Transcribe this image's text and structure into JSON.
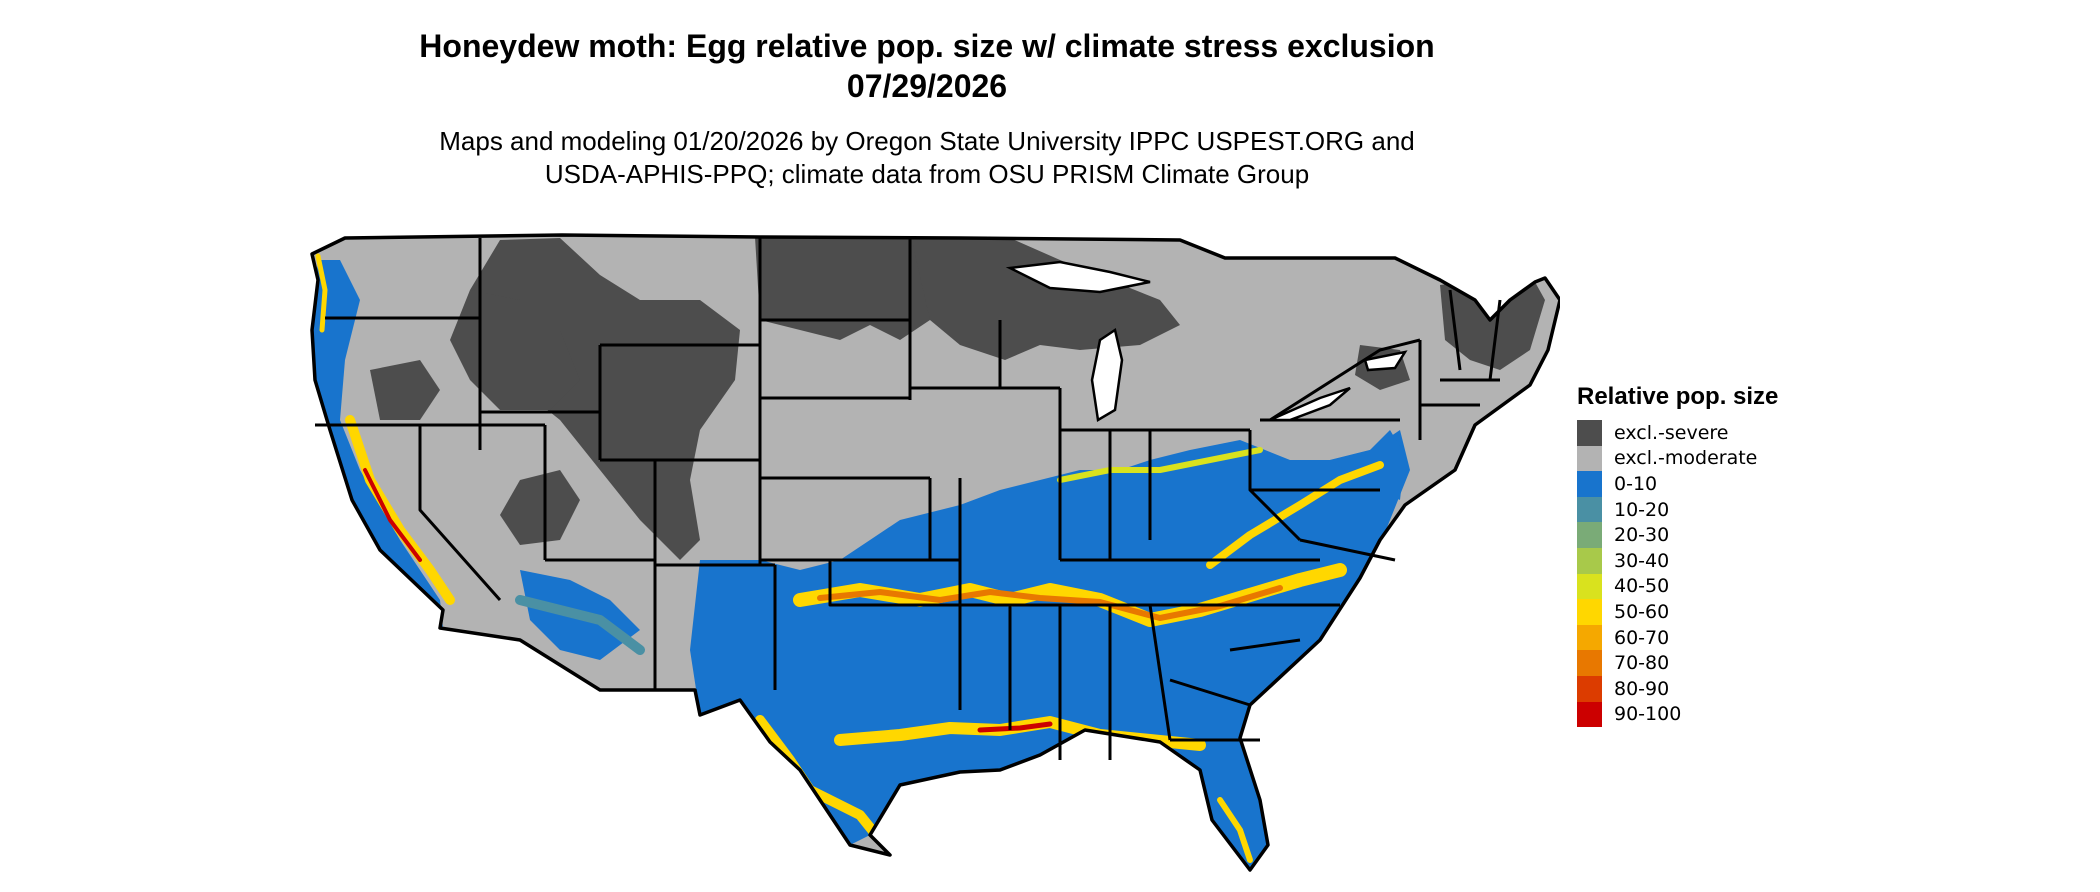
{
  "header": {
    "title_line1": "Honeydew moth: Egg relative pop. size w/ climate stress exclusion",
    "title_line2": "07/29/2026",
    "subtitle_line1": "Maps and modeling 01/20/2026 by Oregon State University IPPC USPEST.ORG and",
    "subtitle_line2": "USDA-APHIS-PPQ; climate data from OSU PRISM Climate Group"
  },
  "legend": {
    "title": "Relative pop. size",
    "items": [
      {
        "label": "excl.-severe",
        "color": "#4d4d4d"
      },
      {
        "label": "excl.-moderate",
        "color": "#b3b3b3"
      },
      {
        "label": "0-10",
        "color": "#1874cd"
      },
      {
        "label": "10-20",
        "color": "#4a90a4"
      },
      {
        "label": "20-30",
        "color": "#7aab77"
      },
      {
        "label": "30-40",
        "color": "#a8c94a"
      },
      {
        "label": "40-50",
        "color": "#d9e21e"
      },
      {
        "label": "50-60",
        "color": "#ffd700"
      },
      {
        "label": "60-70",
        "color": "#f5a800"
      },
      {
        "label": "70-80",
        "color": "#e87800"
      },
      {
        "label": "80-90",
        "color": "#dc3c00"
      },
      {
        "label": "90-100",
        "color": "#cc0000"
      }
    ]
  },
  "map": {
    "region": "conterminous-us",
    "colors": {
      "severe": "#4d4d4d",
      "moderate": "#b3b3b3",
      "low": "#1874cd",
      "warm1": "#ffd700",
      "warm2": "#e87800",
      "warm3": "#cc0000",
      "border": "#000000"
    }
  }
}
